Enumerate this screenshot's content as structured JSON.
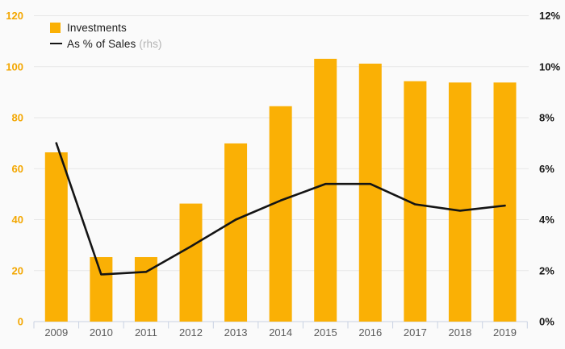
{
  "page": {
    "background": "#fafafa"
  },
  "legend": {
    "items": [
      {
        "label": "Investments",
        "note": ""
      },
      {
        "label": "As % of Sales",
        "note": "(rhs)"
      }
    ]
  },
  "chart_data": {
    "type": "bar",
    "title": "",
    "categories": [
      "2009",
      "2010",
      "2011",
      "2012",
      "2013",
      "2014",
      "2015",
      "2016",
      "2017",
      "2018",
      "2019"
    ],
    "series": [
      {
        "name": "Investments",
        "type": "bar",
        "axis": "left",
        "color": "#FAB005",
        "values": [
          66.4,
          25.3,
          25.3,
          46.3,
          69.9,
          84.5,
          103.1,
          101.2,
          94.3,
          93.8,
          93.8
        ]
      },
      {
        "name": "As % of Sales (rhs)",
        "type": "line",
        "axis": "right",
        "color": "#141414",
        "values": [
          7.0,
          1.85,
          1.95,
          2.95,
          4.0,
          4.75,
          5.4,
          5.4,
          4.6,
          4.35,
          4.55
        ]
      }
    ],
    "left_axis": {
      "min": 0,
      "max": 120,
      "tick_step": 20,
      "tick_labels": [
        "0",
        "20",
        "40",
        "60",
        "80",
        "100",
        "120"
      ],
      "label_color": "#F3A702"
    },
    "right_axis": {
      "min": 0,
      "max": 12,
      "tick_step": 2,
      "tick_labels": [
        "0%",
        "2%",
        "4%",
        "6%",
        "8%",
        "10%",
        "12%"
      ],
      "label_color": "#161616"
    },
    "x_axis": {
      "label_color": "#5b5b5b",
      "line_color": "#c9d2e2"
    },
    "grid": true,
    "gridline_color": "#e7e7e7",
    "legend_position": "top-left"
  }
}
